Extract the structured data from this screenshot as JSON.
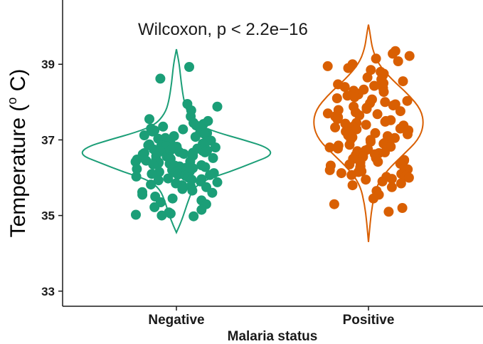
{
  "chart_data": {
    "type": "violin",
    "title": "",
    "annotation": "Wilcoxon, p < 2.2e−16",
    "xlabel": "Malaria status",
    "ylabel": {
      "prefix": "Temperature (",
      "superscript": "o",
      "suffix": " C)"
    },
    "categories": [
      "Negative",
      "Positive"
    ],
    "ylim": [
      32.6,
      40.7
    ],
    "yticks": [
      33,
      35,
      37,
      39
    ],
    "colors": {
      "Negative": "#1b9e77",
      "Positive": "#d95f02"
    },
    "violins": [
      {
        "category": "Negative",
        "range": [
          34.55,
          39.4
        ],
        "profile": [
          [
            34.55,
            0.0
          ],
          [
            34.9,
            0.06
          ],
          [
            35.3,
            0.11
          ],
          [
            35.7,
            0.17
          ],
          [
            35.95,
            0.3
          ],
          [
            36.15,
            0.55
          ],
          [
            36.4,
            0.8
          ],
          [
            36.6,
            1.0
          ],
          [
            36.8,
            0.95
          ],
          [
            37.0,
            0.7
          ],
          [
            37.2,
            0.42
          ],
          [
            37.4,
            0.22
          ],
          [
            37.7,
            0.12
          ],
          [
            38.0,
            0.08
          ],
          [
            38.5,
            0.05
          ],
          [
            39.0,
            0.03
          ],
          [
            39.4,
            0.0
          ]
        ]
      },
      {
        "category": "Positive",
        "range": [
          34.3,
          40.05
        ],
        "profile": [
          [
            34.3,
            0.0
          ],
          [
            34.8,
            0.03
          ],
          [
            35.3,
            0.07
          ],
          [
            35.8,
            0.15
          ],
          [
            36.2,
            0.34
          ],
          [
            36.6,
            0.62
          ],
          [
            37.0,
            0.9
          ],
          [
            37.4,
            1.0
          ],
          [
            37.8,
            0.95
          ],
          [
            38.2,
            0.72
          ],
          [
            38.6,
            0.42
          ],
          [
            39.0,
            0.18
          ],
          [
            39.4,
            0.07
          ],
          [
            39.8,
            0.03
          ],
          [
            40.05,
            0.0
          ]
        ]
      }
    ],
    "points": [
      {
        "category": "Negative",
        "values": [
          38.93,
          38.62,
          37.95,
          37.88,
          37.78,
          37.62,
          37.55,
          37.5,
          37.45,
          37.42,
          37.38,
          37.35,
          37.32,
          37.3,
          37.28,
          37.25,
          37.22,
          37.2,
          37.18,
          37.15,
          37.12,
          37.1,
          37.08,
          37.05,
          37.03,
          37.0,
          36.98,
          36.96,
          36.94,
          36.92,
          36.9,
          36.88,
          36.86,
          36.85,
          36.83,
          36.82,
          36.8,
          36.78,
          36.77,
          36.75,
          36.74,
          36.72,
          36.71,
          36.7,
          36.68,
          36.67,
          36.66,
          36.65,
          36.63,
          36.62,
          36.61,
          36.6,
          36.58,
          36.57,
          36.56,
          36.55,
          36.53,
          36.52,
          36.5,
          36.48,
          36.47,
          36.45,
          36.43,
          36.42,
          36.4,
          36.38,
          36.37,
          36.35,
          36.33,
          36.32,
          36.3,
          36.28,
          36.26,
          36.25,
          36.23,
          36.22,
          36.2,
          36.18,
          36.17,
          36.15,
          36.13,
          36.12,
          36.1,
          36.08,
          36.07,
          36.05,
          36.03,
          36.02,
          36.0,
          35.98,
          35.96,
          35.95,
          35.93,
          35.9,
          35.88,
          35.85,
          35.82,
          35.8,
          35.77,
          35.75,
          35.7,
          35.66,
          35.62,
          35.6,
          35.55,
          35.5,
          35.45,
          35.4,
          35.35,
          35.3,
          35.22,
          35.15,
          35.08,
          35.05,
          35.02,
          35.0,
          34.98
        ]
      },
      {
        "category": "Positive",
        "values": [
          39.35,
          39.28,
          39.22,
          39.15,
          39.08,
          39.0,
          38.95,
          38.9,
          38.85,
          38.8,
          38.75,
          38.7,
          38.65,
          38.6,
          38.55,
          38.5,
          38.47,
          38.43,
          38.4,
          38.37,
          38.33,
          38.3,
          38.27,
          38.23,
          38.2,
          38.17,
          38.13,
          38.1,
          38.07,
          38.03,
          38.0,
          37.97,
          37.94,
          37.91,
          37.88,
          37.85,
          37.82,
          37.79,
          37.76,
          37.73,
          37.7,
          37.68,
          37.65,
          37.62,
          37.6,
          37.57,
          37.55,
          37.52,
          37.5,
          37.48,
          37.45,
          37.43,
          37.4,
          37.38,
          37.35,
          37.33,
          37.3,
          37.28,
          37.25,
          37.22,
          37.2,
          37.18,
          37.15,
          37.12,
          37.1,
          37.07,
          37.05,
          37.02,
          37.0,
          36.97,
          36.95,
          36.92,
          36.9,
          36.87,
          36.85,
          36.82,
          36.8,
          36.77,
          36.75,
          36.72,
          36.7,
          36.67,
          36.65,
          36.62,
          36.6,
          36.57,
          36.55,
          36.52,
          36.5,
          36.47,
          36.45,
          36.42,
          36.4,
          36.37,
          36.35,
          36.32,
          36.3,
          36.27,
          36.25,
          36.22,
          36.2,
          36.17,
          36.15,
          36.12,
          36.1,
          36.07,
          36.05,
          36.02,
          36.0,
          35.97,
          35.95,
          35.9,
          35.85,
          35.8,
          35.75,
          35.65,
          35.55,
          35.45,
          35.3,
          35.2,
          35.1
        ]
      }
    ]
  }
}
